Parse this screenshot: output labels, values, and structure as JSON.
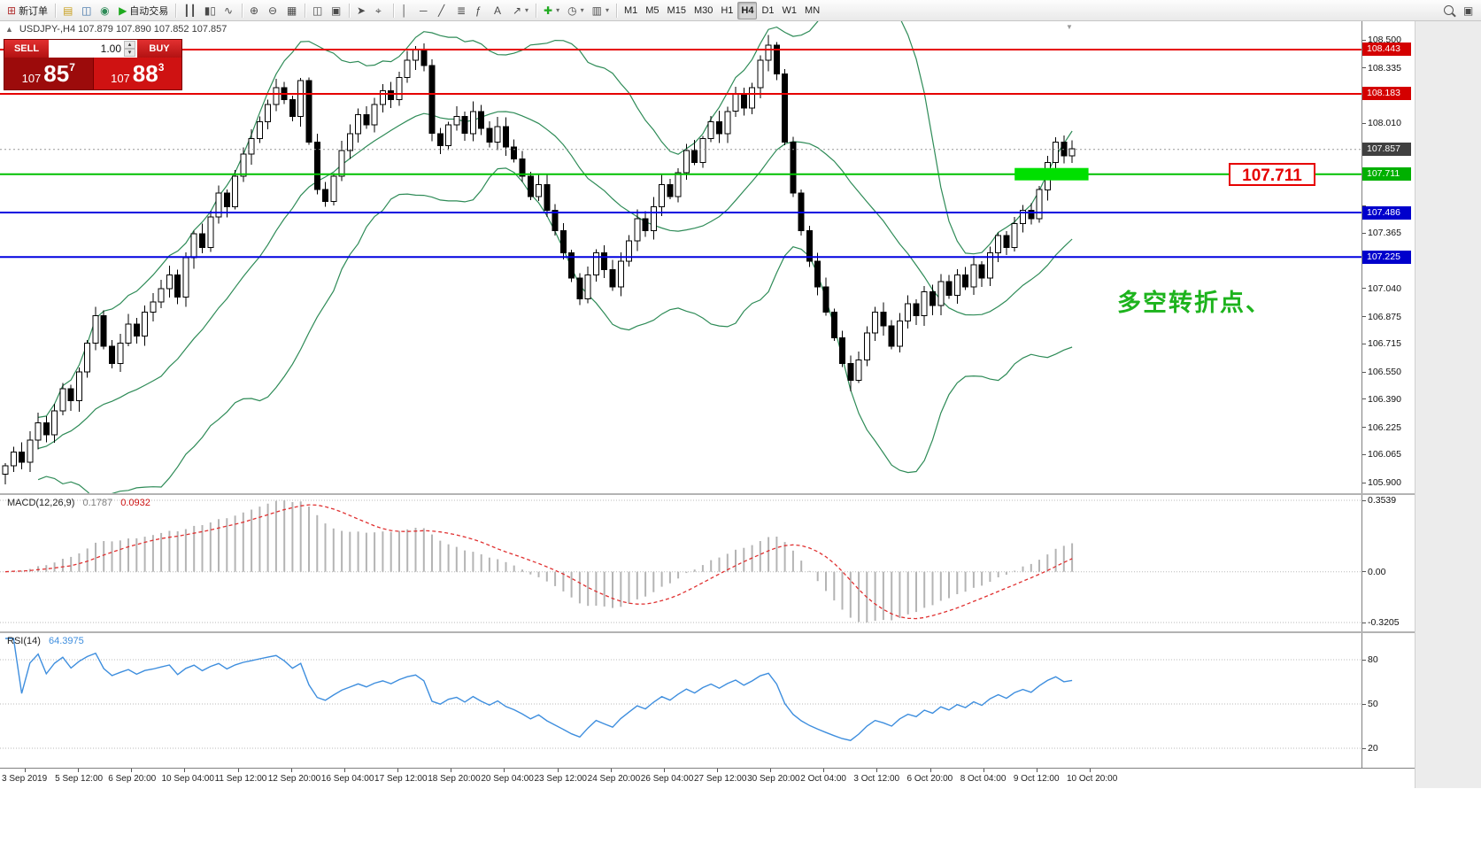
{
  "toolbar": {
    "dropdown_glyph": "▾",
    "groups": [
      [
        {
          "name": "new-order-button",
          "glyph": "⊞",
          "glyph_color": "#b23333",
          "label": "新订单"
        }
      ],
      [
        {
          "name": "market-watch-button",
          "glyph": "▤",
          "glyph_color": "#c8a020"
        },
        {
          "name": "data-window-button",
          "glyph": "◫",
          "glyph_color": "#3a6ea5"
        },
        {
          "name": "navigator-button",
          "glyph": "◉",
          "glyph_color": "#2e8b57"
        },
        {
          "name": "autotrading-button",
          "glyph": "▶",
          "glyph_color": "#1faa1f",
          "label": "自动交易"
        }
      ],
      [
        {
          "name": "bar-chart-button",
          "glyph": "┃┃"
        },
        {
          "name": "candlestick-chart-button",
          "glyph": "▮▯"
        },
        {
          "name": "line-chart-button",
          "glyph": "∿"
        }
      ],
      [
        {
          "name": "zoom-in-button",
          "glyph": "⊕"
        },
        {
          "name": "zoom-out-button",
          "glyph": "⊖"
        },
        {
          "name": "auto-arrange-button",
          "glyph": "▦"
        }
      ],
      [
        {
          "name": "tile-windows-button",
          "glyph": "◫"
        },
        {
          "name": "cascade-windows-button",
          "glyph": "▣"
        }
      ],
      [
        {
          "name": "cursor-tool-button",
          "glyph": "➤"
        },
        {
          "name": "crosshair-tool-button",
          "glyph": "⌖"
        }
      ],
      [
        {
          "name": "vertical-line-tool-button",
          "glyph": "│"
        },
        {
          "name": "horizontal-line-tool-button",
          "glyph": "─"
        },
        {
          "name": "trendline-tool-button",
          "glyph": "╱"
        },
        {
          "name": "channel-tool-button",
          "glyph": "≣"
        },
        {
          "name": "fibonacci-tool-button",
          "glyph": "ƒ"
        },
        {
          "name": "text-tool-button",
          "glyph": "A"
        },
        {
          "name": "arrows-tool-button",
          "glyph": "↗",
          "dropdown": true
        }
      ],
      [
        {
          "name": "indicators-button",
          "glyph": "✚",
          "glyph_color": "#1faa1f",
          "dropdown": true
        },
        {
          "name": "periods-button",
          "glyph": "◷",
          "dropdown": true
        },
        {
          "name": "templates-button",
          "glyph": "▥",
          "dropdown": true
        }
      ],
      [
        {
          "name": "timeframe-m1-button",
          "label": "M1"
        },
        {
          "name": "timeframe-m5-button",
          "label": "M5"
        },
        {
          "name": "timeframe-m15-button",
          "label": "M15"
        },
        {
          "name": "timeframe-m30-button",
          "label": "M30"
        },
        {
          "name": "timeframe-h1-button",
          "label": "H1"
        },
        {
          "name": "timeframe-h4-button",
          "label": "H4",
          "active": true
        },
        {
          "name": "timeframe-d1-button",
          "label": "D1"
        },
        {
          "name": "timeframe-w1-button",
          "label": "W1"
        },
        {
          "name": "timeframe-mn-button",
          "label": "MN"
        }
      ]
    ],
    "right_items": [
      {
        "name": "search-button",
        "css_icon": "search"
      },
      {
        "name": "community-button",
        "glyph": "▣"
      }
    ]
  },
  "chart": {
    "symbol_line": "USDJPY-,H4  107.879 107.890 107.852 107.857",
    "shift_marker_glyph": "▼",
    "one_click": {
      "collapse_glyph": "▲",
      "sell_label": "SELL",
      "buy_label": "BUY",
      "volume": "1.00",
      "spinner_up": "▴",
      "spinner_down": "▾",
      "sell_price": {
        "prefix": "107",
        "big": "85",
        "sup": "7"
      },
      "buy_price": {
        "prefix": "107",
        "big": "88",
        "sup": "3"
      }
    },
    "annotation": {
      "text": "多空转折点、",
      "color": "#1db31d"
    },
    "price_annotation": {
      "text": "107.711",
      "color": "#e60000"
    }
  },
  "chart_data": {
    "type": "candlestick",
    "symbol": "USDJPY",
    "timeframe": "H4",
    "ohlc_display": {
      "open": "107.879",
      "high": "107.890",
      "low": "107.852",
      "close": "107.857"
    },
    "current_price": 107.857,
    "closes": [
      106.0,
      106.08,
      106.02,
      106.15,
      106.25,
      106.18,
      106.32,
      106.45,
      106.38,
      106.55,
      106.72,
      106.88,
      106.7,
      106.6,
      106.72,
      106.83,
      106.76,
      106.9,
      106.96,
      107.04,
      107.12,
      106.99,
      107.22,
      107.36,
      107.28,
      107.46,
      107.6,
      107.52,
      107.7,
      107.83,
      107.92,
      108.02,
      108.12,
      108.22,
      108.15,
      108.05,
      108.26,
      107.9,
      107.62,
      107.55,
      107.7,
      107.85,
      107.95,
      108.06,
      108.0,
      108.12,
      108.2,
      108.15,
      108.28,
      108.38,
      108.44,
      108.35,
      107.95,
      107.88,
      108.0,
      108.05,
      107.95,
      108.08,
      107.98,
      107.9,
      107.99,
      107.87,
      107.8,
      107.7,
      107.58,
      107.65,
      107.5,
      107.38,
      107.25,
      107.1,
      106.98,
      107.12,
      107.25,
      107.15,
      107.05,
      107.2,
      107.32,
      107.45,
      107.38,
      107.52,
      107.65,
      107.58,
      107.72,
      107.85,
      107.78,
      107.92,
      108.02,
      107.95,
      108.08,
      108.18,
      108.1,
      108.22,
      108.38,
      108.47,
      108.3,
      107.9,
      107.6,
      107.38,
      107.2,
      107.05,
      106.9,
      106.75,
      106.6,
      106.5,
      106.62,
      106.78,
      106.9,
      106.82,
      106.7,
      106.85,
      106.95,
      106.88,
      107.02,
      106.94,
      107.08,
      107.0,
      107.12,
      107.05,
      107.18,
      107.1,
      107.25,
      107.35,
      107.28,
      107.42,
      107.5,
      107.45,
      107.62,
      107.78,
      107.9,
      107.82,
      107.86
    ],
    "bollinger": {
      "period": 20,
      "deviation": 2,
      "color": "#2e8b57"
    },
    "levels": [
      {
        "name": "resistance-line-1",
        "price": 108.443,
        "color": "#e60000",
        "width": 2
      },
      {
        "name": "resistance-line-2",
        "price": 108.183,
        "color": "#e60000",
        "width": 2
      },
      {
        "name": "pivot-green-line",
        "price": 107.711,
        "color": "#00c000",
        "width": 2
      },
      {
        "name": "support-line-1",
        "price": 107.486,
        "color": "#0000e0",
        "width": 2
      },
      {
        "name": "support-line-2",
        "price": 107.225,
        "color": "#0000e0",
        "width": 2
      }
    ],
    "highlight": {
      "price": 107.711,
      "start_index": 123,
      "end_index": 132,
      "color": "#00e000"
    },
    "price_axis": {
      "ticks": [
        "108.500",
        "108.335",
        "108.170",
        "108.010",
        "107.845",
        "107.690",
        "107.525",
        "107.365",
        "107.200",
        "107.040",
        "106.875",
        "106.715",
        "106.550",
        "106.390",
        "106.225",
        "106.065",
        "105.900"
      ],
      "badges": [
        {
          "name": "resistance-badge-1",
          "text": "108.443",
          "price": 108.443,
          "bg": "#d40000"
        },
        {
          "name": "resistance-badge-2",
          "text": "108.183",
          "price": 108.183,
          "bg": "#d40000"
        },
        {
          "name": "current-price-badge",
          "text": "107.857",
          "price": 107.857,
          "bg": "#404040"
        },
        {
          "name": "pivot-badge",
          "text": "107.711",
          "price": 107.711,
          "bg": "#00b000"
        },
        {
          "name": "support-badge-1",
          "text": "107.486",
          "price": 107.486,
          "bg": "#0000cc"
        },
        {
          "name": "support-badge-2",
          "text": "107.225",
          "price": 107.225,
          "bg": "#0000cc"
        }
      ]
    },
    "x_labels": [
      "3 Sep 2019",
      "5 Sep 12:00",
      "6 Sep 20:00",
      "10 Sep 04:00",
      "11 Sep 12:00",
      "12 Sep 20:00",
      "16 Sep 04:00",
      "17 Sep 12:00",
      "18 Sep 20:00",
      "20 Sep 04:00",
      "23 Sep 12:00",
      "24 Sep 20:00",
      "26 Sep 04:00",
      "27 Sep 12:00",
      "30 Sep 20:00",
      "2 Oct 04:00",
      "3 Oct 12:00",
      "6 Oct 20:00",
      "8 Oct 04:00",
      "9 Oct 12:00",
      "10 Oct 20:00"
    ],
    "macd": {
      "fast": 12,
      "slow": 26,
      "signal": 9,
      "main_value": 0.1787,
      "signal_value": 0.0932,
      "range": [
        -0.3205,
        0.3539
      ]
    },
    "rsi": {
      "period": 14,
      "value": 64.3975,
      "grid_levels": [
        80,
        50,
        20
      ]
    }
  },
  "macd_panel": {
    "label": "MACD(12,26,9)",
    "value_main": "0.1787",
    "value_signal": "0.0932",
    "axis": [
      "0.3539",
      "0.00",
      "-0.3205"
    ]
  },
  "rsi_panel": {
    "label": "RSI(14)",
    "value": "64.3975",
    "axis": [
      "80",
      "50",
      "20"
    ]
  }
}
